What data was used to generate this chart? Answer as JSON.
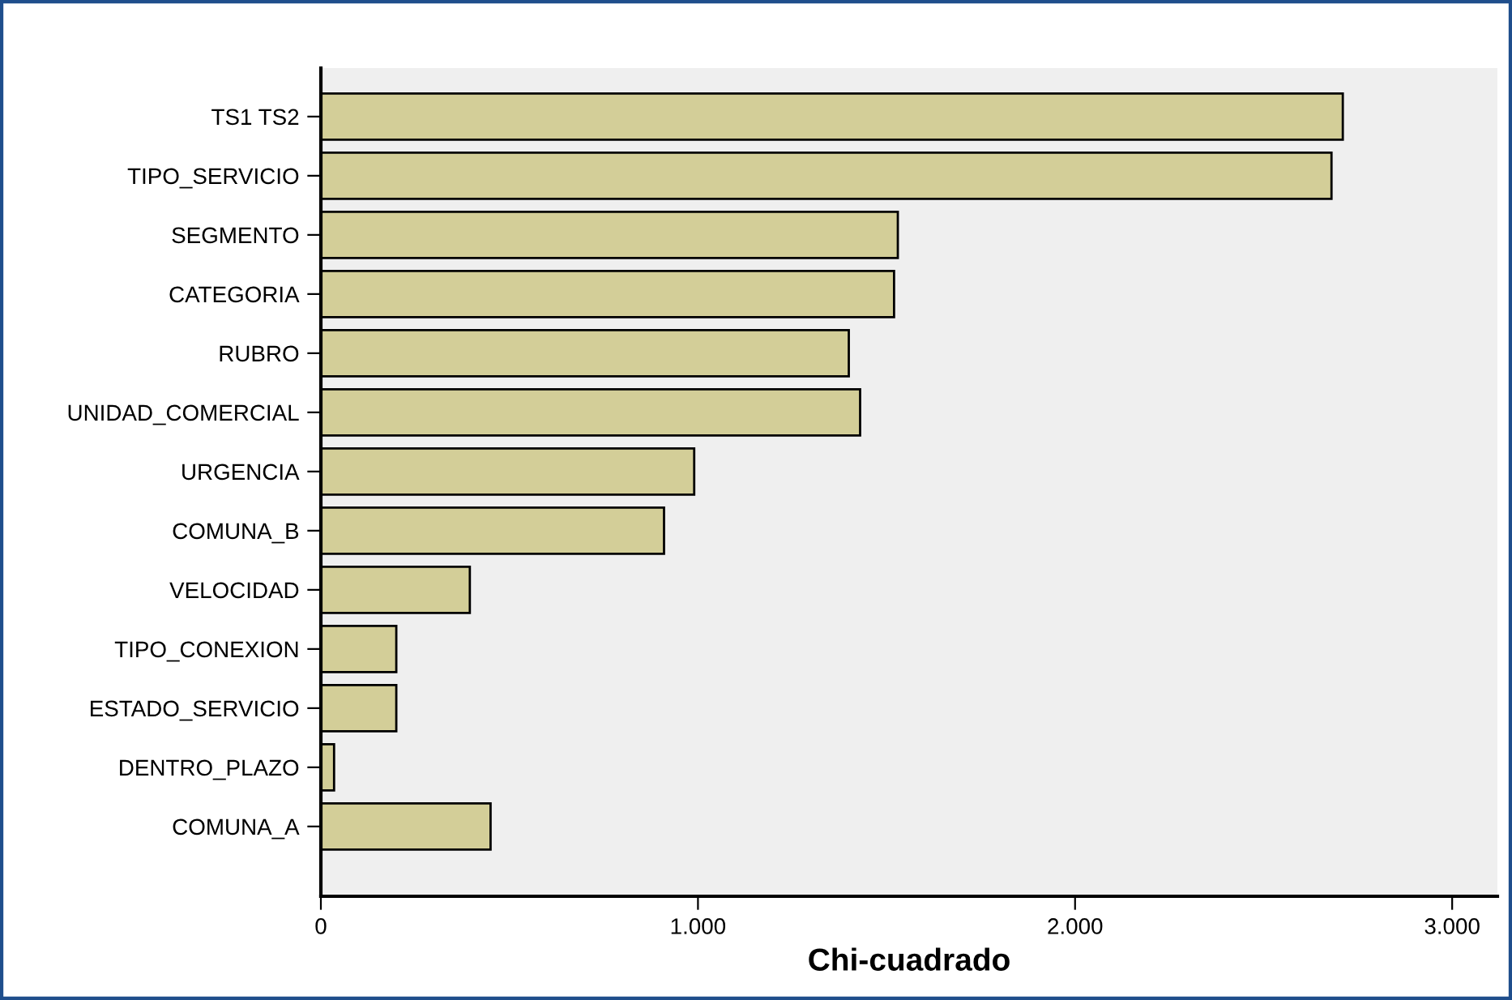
{
  "chart_data": {
    "type": "bar",
    "orientation": "horizontal",
    "xlabel": "Chi-cuadrado",
    "categories": [
      "TS1 TS2",
      "TIPO_SERVICIO",
      "SEGMENTO",
      "CATEGORIA",
      "RUBRO",
      "UNIDAD_COMERCIAL",
      "URGENCIA",
      "COMUNA_B",
      "VELOCIDAD",
      "TIPO_CONEXION",
      "ESTADO_SERVICIO",
      "DENTRO_PLAZO",
      "COMUNA_A"
    ],
    "values": [
      2710,
      2680,
      1530,
      1520,
      1400,
      1430,
      990,
      910,
      395,
      200,
      200,
      35,
      450
    ],
    "color": "#d3ce98",
    "xlim": [
      0,
      3120
    ],
    "xticks": [
      0,
      {
        "value": 1000,
        "label": "1.000"
      },
      {
        "value": 2000,
        "label": "2.000"
      },
      {
        "value": 3000,
        "label": "3.000"
      }
    ],
    "grid": false
  }
}
